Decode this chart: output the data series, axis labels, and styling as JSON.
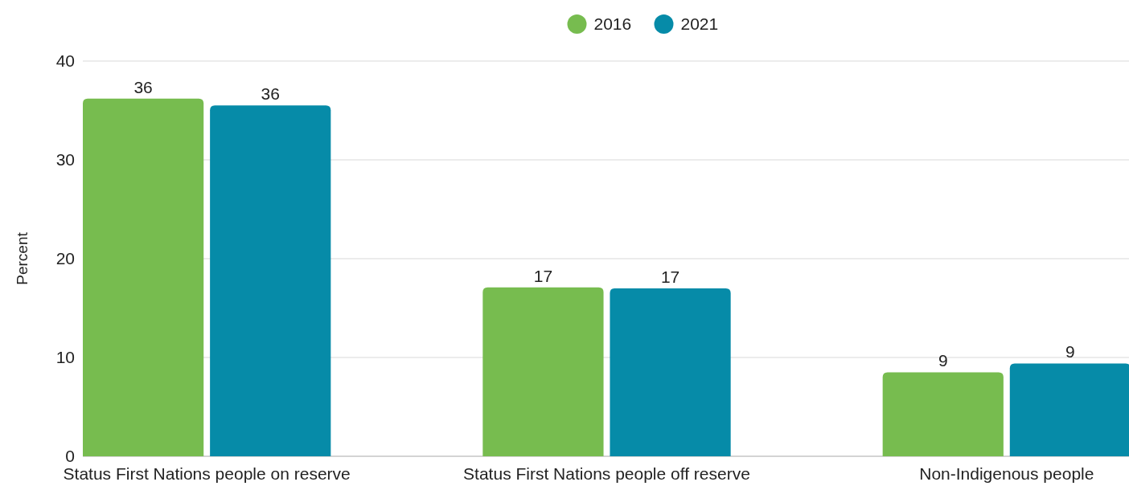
{
  "chart_data": {
    "type": "bar",
    "ylabel": "Percent",
    "categories": [
      "Status First Nations people on reserve",
      "Status First Nations people off reserve",
      "Non-Indigenous people"
    ],
    "series": [
      {
        "name": "2016",
        "color": "#77bc4f",
        "values": [
          36.2,
          17.1,
          8.5
        ],
        "value_labels": [
          "36",
          "17",
          "9"
        ]
      },
      {
        "name": "2021",
        "color": "#068ba8",
        "values": [
          35.5,
          17.0,
          9.4
        ],
        "value_labels": [
          "36",
          "17",
          "9"
        ]
      }
    ],
    "ylim": [
      0,
      40
    ],
    "yticks": [
      0,
      10,
      20,
      30,
      40
    ],
    "grid": "y",
    "legend": "top"
  }
}
